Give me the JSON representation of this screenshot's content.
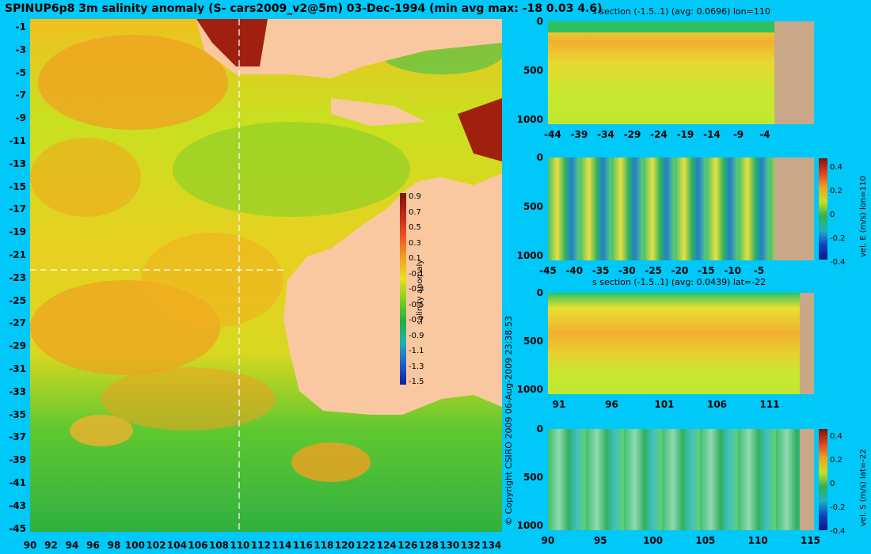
{
  "main_title": "SPINUP6p8 3m salinity anomaly (S- cars2009_v2@5m) 03-Dec-1994 (min avg max: -18 0.03 4.6)",
  "copyright": "© Copyright CSIRO 2009   06-Aug-2009 23:38:53",
  "colors": {
    "background": "#00c8f8",
    "land": "#fac8a0",
    "section_land": "#c8a888"
  },
  "chart_data": [
    {
      "type": "heatmap",
      "title": "SPINUP6p8 3m salinity anomaly (S- cars2009_v2@5m) 03-Dec-1994 (min avg max: -18 0.03 4.6)",
      "x_ticks": [
        "90",
        "92",
        "94",
        "96",
        "98",
        "100",
        "102",
        "104",
        "106",
        "108",
        "110",
        "112",
        "114",
        "116",
        "118",
        "120",
        "122",
        "124",
        "126",
        "128",
        "130",
        "132",
        "134"
      ],
      "y_ticks": [
        "-1",
        "-3",
        "-5",
        "-7",
        "-9",
        "-11",
        "-13",
        "-15",
        "-17",
        "-19",
        "-21",
        "-23",
        "-25",
        "-27",
        "-29",
        "-31",
        "-33",
        "-35",
        "-37",
        "-39",
        "-41",
        "-43",
        "-45"
      ],
      "xlim": [
        90,
        135
      ],
      "ylim": [
        -45,
        0
      ],
      "colorbar_label": "salinity anomaly",
      "colorbar_ticks": [
        "0.9",
        "0.7",
        "0.5",
        "0.3",
        "0.1",
        "-0.1",
        "-0.3",
        "-0.5",
        "-0.7",
        "-0.9",
        "-1.1",
        "-1.3",
        "-1.5"
      ],
      "colorbar_range": [
        -1.5,
        1.0
      ],
      "section_lines": {
        "lon": 110,
        "lat": -22
      }
    },
    {
      "type": "heatmap",
      "title": "s section (-1.5..1) (avg: 0.0696) lon=110",
      "x_ticks": [
        "-44",
        "-39",
        "-34",
        "-29",
        "-24",
        "-19",
        "-14",
        "-9",
        "-4"
      ],
      "y_ticks": [
        "0",
        "500",
        "1000"
      ]
    },
    {
      "type": "heatmap",
      "title": "",
      "x_ticks": [
        "-45",
        "-40",
        "-35",
        "-30",
        "-25",
        "-20",
        "-15",
        "-10",
        "-5"
      ],
      "y_ticks": [
        "0",
        "500",
        "1000"
      ],
      "colorbar_label": "vel. E (m/s) lon=110",
      "colorbar_ticks": [
        "0.4",
        "0.2",
        "0",
        "-0.2",
        "-0.4"
      ]
    },
    {
      "type": "heatmap",
      "title": "s section (-1.5..1) (avg: 0.0439) lat=-22",
      "x_ticks": [
        "91",
        "96",
        "101",
        "106",
        "111"
      ],
      "y_ticks": [
        "0",
        "500",
        "1000"
      ]
    },
    {
      "type": "heatmap",
      "title": "",
      "x_ticks": [
        "90",
        "95",
        "100",
        "105",
        "110",
        "115"
      ],
      "y_ticks": [
        "0",
        "500",
        "1000"
      ],
      "colorbar_label": "vel. S (m/s) lat=-22",
      "colorbar_ticks": [
        "0.4",
        "0.2",
        "0",
        "-0.2",
        "-0.4"
      ]
    }
  ]
}
